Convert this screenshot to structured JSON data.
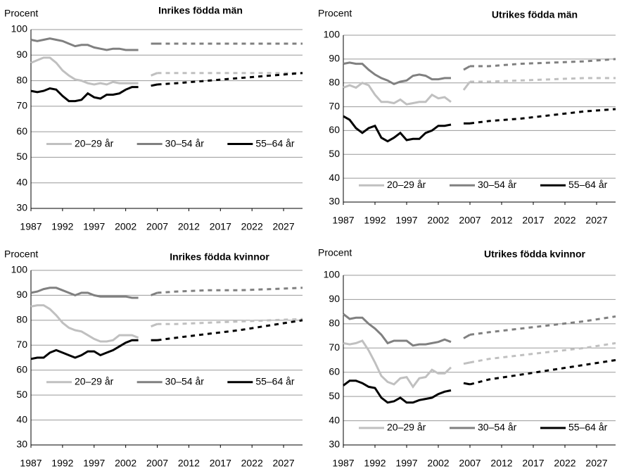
{
  "chart_data": [
    {
      "type": "line",
      "title": "Inrikes födda män",
      "ylabel": "Procent",
      "legend": "center",
      "dash_from": 2007,
      "x": [
        1987,
        1988,
        1989,
        1990,
        1991,
        1992,
        1993,
        1994,
        1995,
        1996,
        1997,
        1998,
        1999,
        2000,
        2001,
        2002,
        2003,
        2004,
        2005,
        2006,
        2007,
        2010,
        2015,
        2020,
        2025,
        2030
      ],
      "xlim": [
        1987,
        2030
      ],
      "xticks": [
        1987,
        1992,
        1997,
        2002,
        2007,
        2012,
        2017,
        2022,
        2027
      ],
      "ylim": [
        30,
        100
      ],
      "yticks": [
        30,
        40,
        50,
        60,
        70,
        80,
        90,
        100
      ],
      "grid": true,
      "series": [
        {
          "name": "20–29 år",
          "color": "#c0c0c0",
          "values": [
            87,
            88,
            89,
            89,
            87,
            84,
            82,
            80.5,
            80,
            79,
            78.5,
            79,
            78.5,
            79.5,
            79,
            79,
            79,
            79,
            null,
            82,
            83,
            83,
            83,
            83,
            83,
            83
          ]
        },
        {
          "name": "30–54 år",
          "color": "#808080",
          "values": [
            96,
            95.5,
            96,
            96.5,
            96,
            95.5,
            94.5,
            93.5,
            94,
            94,
            93,
            92.5,
            92,
            92.5,
            92.5,
            92,
            92,
            92,
            null,
            94.5,
            94.5,
            94.5,
            94.5,
            94.5,
            94.5,
            94.5
          ]
        },
        {
          "name": "55–64 år",
          "color": "#000000",
          "values": [
            76,
            75.5,
            76,
            77,
            76.5,
            74,
            72,
            72,
            72.5,
            75,
            73.5,
            73,
            74.5,
            74.5,
            75,
            76.5,
            77.5,
            77.5,
            null,
            78,
            78.5,
            79,
            80,
            81,
            82,
            83
          ]
        }
      ]
    },
    {
      "type": "line",
      "title": "Utrikes födda män",
      "ylabel": "Procent",
      "legend": "lower center",
      "dash_from": 2007,
      "x": [
        1987,
        1988,
        1989,
        1990,
        1991,
        1992,
        1993,
        1994,
        1995,
        1996,
        1997,
        1998,
        1999,
        2000,
        2001,
        2002,
        2003,
        2004,
        2005,
        2006,
        2007,
        2010,
        2015,
        2020,
        2025,
        2030
      ],
      "xlim": [
        1987,
        2030
      ],
      "xticks": [
        1987,
        1992,
        1997,
        2002,
        2007,
        2012,
        2017,
        2022,
        2027
      ],
      "ylim": [
        30,
        100
      ],
      "yticks": [
        30,
        40,
        50,
        60,
        70,
        80,
        90,
        100
      ],
      "grid": true,
      "series": [
        {
          "name": "20–29 år",
          "color": "#c0c0c0",
          "values": [
            78,
            79,
            78,
            80,
            79,
            75,
            72,
            72,
            71.5,
            73,
            71,
            71.5,
            72,
            72,
            75,
            73.5,
            74,
            72,
            null,
            77,
            80.5,
            80.5,
            81,
            81.5,
            82,
            82
          ]
        },
        {
          "name": "30–54 år",
          "color": "#808080",
          "values": [
            88,
            88.5,
            88,
            88,
            85.5,
            83.5,
            82,
            81,
            79.5,
            80.5,
            81,
            83,
            83.5,
            83,
            81.5,
            81.5,
            82,
            82,
            null,
            85.5,
            87,
            87,
            88,
            88.5,
            89,
            90
          ]
        },
        {
          "name": "55–64 år",
          "color": "#000000",
          "values": [
            66,
            64.5,
            61,
            59,
            61,
            62,
            57,
            55.5,
            57,
            59,
            56,
            56.5,
            56.5,
            59,
            60,
            62,
            62,
            62.5,
            null,
            63,
            63,
            64,
            65,
            66.5,
            68,
            69
          ]
        }
      ]
    },
    {
      "type": "line",
      "title": "Inrikes födda kvinnor",
      "ylabel": "Procent",
      "legend": "center",
      "dash_from": 2007,
      "x": [
        1987,
        1988,
        1989,
        1990,
        1991,
        1992,
        1993,
        1994,
        1995,
        1996,
        1997,
        1998,
        1999,
        2000,
        2001,
        2002,
        2003,
        2004,
        2005,
        2006,
        2007,
        2010,
        2015,
        2020,
        2025,
        2030
      ],
      "xlim": [
        1987,
        2030
      ],
      "xticks": [
        1987,
        1992,
        1997,
        2002,
        2007,
        2012,
        2017,
        2022,
        2027
      ],
      "ylim": [
        30,
        100
      ],
      "yticks": [
        30,
        40,
        50,
        60,
        70,
        80,
        90,
        100
      ],
      "grid": true,
      "series": [
        {
          "name": "20–29 år",
          "color": "#c0c0c0",
          "values": [
            85.5,
            86,
            86,
            84.5,
            82,
            79,
            77,
            76,
            75.5,
            74,
            72.5,
            71.5,
            71.5,
            72,
            74,
            74,
            74,
            73,
            null,
            77.5,
            78.5,
            78.5,
            79,
            79.5,
            80,
            80.5
          ]
        },
        {
          "name": "30–54 år",
          "color": "#808080",
          "values": [
            91,
            91.5,
            92.5,
            93,
            93,
            92,
            91,
            90,
            91,
            91,
            90,
            89.5,
            89.5,
            89.5,
            89.5,
            89.5,
            89,
            89,
            null,
            90,
            91,
            91.5,
            92,
            92,
            92.5,
            93
          ]
        },
        {
          "name": "55–64 år",
          "color": "#000000",
          "values": [
            64.5,
            65,
            65,
            67,
            68,
            67,
            66,
            65,
            66,
            67.5,
            67.5,
            66,
            67,
            68,
            69.5,
            71,
            72,
            72,
            null,
            72,
            72,
            73,
            74.5,
            76,
            78,
            80
          ]
        }
      ]
    },
    {
      "type": "line",
      "title": "Utrikes födda kvinnor",
      "ylabel": "Procent",
      "legend": "lower center",
      "dash_from": 2007,
      "x": [
        1987,
        1988,
        1989,
        1990,
        1991,
        1992,
        1993,
        1994,
        1995,
        1996,
        1997,
        1998,
        1999,
        2000,
        2001,
        2002,
        2003,
        2004,
        2005,
        2006,
        2007,
        2010,
        2015,
        2020,
        2025,
        2030
      ],
      "xlim": [
        1987,
        2030
      ],
      "xticks": [
        1987,
        1992,
        1997,
        2002,
        2007,
        2012,
        2017,
        2022,
        2027
      ],
      "ylim": [
        30,
        100
      ],
      "yticks": [
        30,
        40,
        50,
        60,
        70,
        80,
        90,
        100
      ],
      "grid": true,
      "series": [
        {
          "name": "20–29 år",
          "color": "#c0c0c0",
          "values": [
            72,
            71.5,
            72,
            73,
            69,
            64,
            58.5,
            56,
            55,
            57.5,
            58,
            54,
            57.5,
            58,
            61,
            59.5,
            59.5,
            62,
            null,
            63.5,
            64,
            65.5,
            67,
            68.5,
            70,
            72
          ]
        },
        {
          "name": "30–54 år",
          "color": "#808080",
          "values": [
            84,
            82,
            82.5,
            82.5,
            80,
            78,
            75.5,
            72,
            73,
            73,
            73,
            71,
            71.5,
            71.5,
            72,
            72.5,
            73.5,
            72.5,
            null,
            74,
            75.5,
            76.5,
            78,
            79.5,
            81,
            83
          ]
        },
        {
          "name": "55–64 år",
          "color": "#000000",
          "values": [
            54.5,
            56.5,
            56.5,
            55.5,
            54,
            53.5,
            49.5,
            47.5,
            48,
            49.5,
            47.5,
            47.5,
            48.5,
            49,
            49.5,
            51,
            52,
            52.5,
            null,
            55.5,
            55,
            57,
            59,
            61,
            63,
            65
          ]
        }
      ]
    }
  ]
}
